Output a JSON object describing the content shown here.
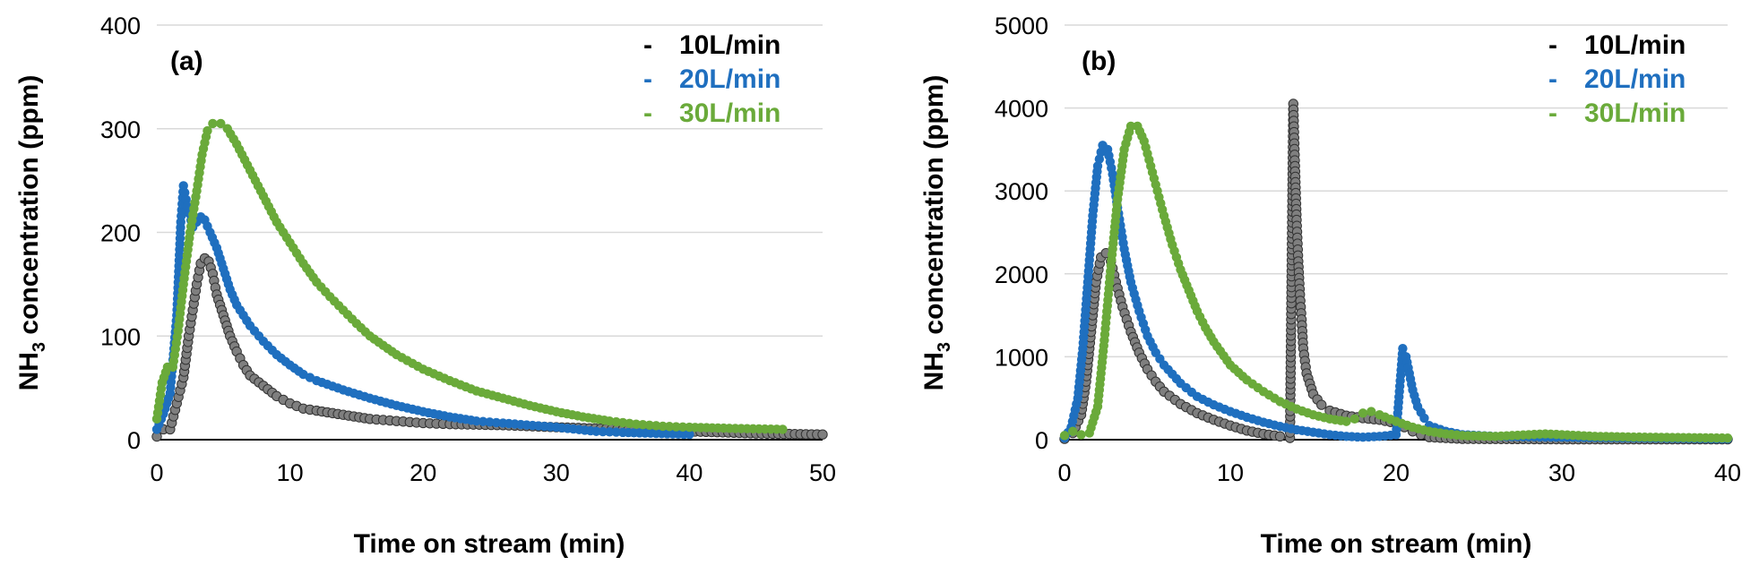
{
  "chart_data": [
    {
      "type": "scatter",
      "panel_label": "(a)",
      "xlabel": "Time on stream (min)",
      "ylabel_main": "NH",
      "ylabel_sub": "3",
      "ylabel_rest": " concentration (ppm)",
      "xlim": [
        0,
        50
      ],
      "ylim": [
        0,
        400
      ],
      "xticks": [
        "0",
        "10",
        "20",
        "30",
        "40",
        "50"
      ],
      "yticks": [
        "0",
        "100",
        "200",
        "300",
        "400"
      ],
      "grid": true,
      "legend_placement": "top-right",
      "series": [
        {
          "name": "10L/min",
          "marker": "-",
          "color": "#7f7f7f",
          "points": [
            [
              0,
              3
            ],
            [
              0.5,
              10
            ],
            [
              1,
              10
            ],
            [
              1.5,
              35
            ],
            [
              2,
              60
            ],
            [
              2.4,
              100
            ],
            [
              2.7,
              125
            ],
            [
              3,
              150
            ],
            [
              3.3,
              170
            ],
            [
              3.6,
              175
            ],
            [
              3.9,
              172
            ],
            [
              4.2,
              160
            ],
            [
              4.5,
              140
            ],
            [
              5,
              120
            ],
            [
              5.5,
              100
            ],
            [
              6,
              85
            ],
            [
              6.5,
              72
            ],
            [
              7,
              62
            ],
            [
              8,
              52
            ],
            [
              9,
              42
            ],
            [
              10,
              35
            ],
            [
              11,
              30
            ],
            [
              12,
              28
            ],
            [
              14,
              24
            ],
            [
              16,
              20
            ],
            [
              18,
              18
            ],
            [
              20,
              16
            ],
            [
              22,
              15
            ],
            [
              26,
              14
            ],
            [
              30,
              12
            ],
            [
              35,
              10
            ],
            [
              40,
              8
            ],
            [
              45,
              6
            ],
            [
              50,
              5
            ]
          ]
        },
        {
          "name": "20L/min",
          "marker": "-",
          "color": "#1f6fbf",
          "points": [
            [
              0,
              10
            ],
            [
              0.5,
              25
            ],
            [
              1,
              45
            ],
            [
              1.5,
              120
            ],
            [
              1.8,
              210
            ],
            [
              2,
              245
            ],
            [
              2.3,
              225
            ],
            [
              2.7,
              205
            ],
            [
              3,
              210
            ],
            [
              3.3,
              215
            ],
            [
              3.6,
              212
            ],
            [
              4,
              200
            ],
            [
              4.5,
              185
            ],
            [
              5,
              165
            ],
            [
              5.5,
              145
            ],
            [
              6,
              130
            ],
            [
              7,
              110
            ],
            [
              8,
              95
            ],
            [
              9,
              82
            ],
            [
              10,
              72
            ],
            [
              11,
              63
            ],
            [
              12,
              57
            ],
            [
              14,
              48
            ],
            [
              16,
              40
            ],
            [
              18,
              33
            ],
            [
              20,
              27
            ],
            [
              22,
              22
            ],
            [
              24,
              18
            ],
            [
              26,
              16
            ],
            [
              30,
              12
            ],
            [
              33,
              8
            ],
            [
              35,
              7
            ],
            [
              40,
              5
            ]
          ]
        },
        {
          "name": "30L/min",
          "marker": "-",
          "color": "#6aaa3a",
          "points": [
            [
              0,
              20
            ],
            [
              0.4,
              55
            ],
            [
              0.8,
              70
            ],
            [
              1.2,
              70
            ],
            [
              1.6,
              105
            ],
            [
              2,
              150
            ],
            [
              2.5,
              200
            ],
            [
              3,
              240
            ],
            [
              3.4,
              275
            ],
            [
              3.8,
              298
            ],
            [
              4.2,
              305
            ],
            [
              4.8,
              305
            ],
            [
              5.3,
              300
            ],
            [
              6,
              285
            ],
            [
              7,
              260
            ],
            [
              8,
              235
            ],
            [
              9,
              210
            ],
            [
              10,
              190
            ],
            [
              11,
              170
            ],
            [
              12,
              152
            ],
            [
              13,
              138
            ],
            [
              14,
              125
            ],
            [
              15,
              112
            ],
            [
              16,
              100
            ],
            [
              18,
              82
            ],
            [
              20,
              68
            ],
            [
              22,
              57
            ],
            [
              24,
              47
            ],
            [
              26,
              40
            ],
            [
              28,
              33
            ],
            [
              30,
              27
            ],
            [
              32,
              22
            ],
            [
              34,
              18
            ],
            [
              36,
              15
            ],
            [
              38,
              13
            ],
            [
              40,
              12
            ],
            [
              43,
              11
            ],
            [
              47,
              10
            ]
          ]
        }
      ]
    },
    {
      "type": "scatter",
      "panel_label": "(b)",
      "xlabel": "Time on stream (min)",
      "ylabel_main": "NH",
      "ylabel_sub": "3",
      "ylabel_rest": " concentration (ppm)",
      "xlim": [
        0,
        40
      ],
      "ylim": [
        0,
        5000
      ],
      "xticks": [
        "0",
        "10",
        "20",
        "30",
        "40"
      ],
      "yticks": [
        "0",
        "1000",
        "2000",
        "3000",
        "4000",
        "5000"
      ],
      "grid": true,
      "legend_placement": "top-right",
      "series": [
        {
          "name": "10L/min",
          "marker": "-",
          "color": "#7f7f7f",
          "points": [
            [
              0,
              10
            ],
            [
              0.5,
              80
            ],
            [
              1,
              300
            ],
            [
              1.3,
              700
            ],
            [
              1.6,
              1300
            ],
            [
              1.9,
              1900
            ],
            [
              2.2,
              2200
            ],
            [
              2.5,
              2250
            ],
            [
              2.8,
              2150
            ],
            [
              3.1,
              1900
            ],
            [
              3.5,
              1600
            ],
            [
              4,
              1300
            ],
            [
              4.5,
              1050
            ],
            [
              5,
              850
            ],
            [
              5.5,
              700
            ],
            [
              6,
              580
            ],
            [
              7,
              430
            ],
            [
              8,
              320
            ],
            [
              9,
              240
            ],
            [
              10,
              170
            ],
            [
              11,
              110
            ],
            [
              12,
              70
            ],
            [
              13,
              40
            ],
            [
              13.6,
              20
            ],
            [
              13.8,
              4050
            ],
            [
              13.9,
              3300
            ],
            [
              14,
              2650
            ],
            [
              14.1,
              2150
            ],
            [
              14.2,
              1750
            ],
            [
              14.3,
              1450
            ],
            [
              14.4,
              1100
            ],
            [
              14.6,
              800
            ],
            [
              15,
              550
            ],
            [
              15.5,
              420
            ],
            [
              16,
              350
            ],
            [
              17,
              290
            ],
            [
              18,
              260
            ],
            [
              19,
              240
            ],
            [
              20,
              200
            ],
            [
              20.5,
              150
            ],
            [
              21,
              100
            ],
            [
              21.5,
              60
            ],
            [
              22,
              30
            ],
            [
              24,
              10
            ],
            [
              30,
              5
            ],
            [
              40,
              5
            ]
          ]
        },
        {
          "name": "20L/min",
          "marker": "-",
          "color": "#1f6fbf",
          "points": [
            [
              0,
              20
            ],
            [
              0.4,
              150
            ],
            [
              0.8,
              500
            ],
            [
              1.1,
              1100
            ],
            [
              1.4,
              1900
            ],
            [
              1.7,
              2700
            ],
            [
              2,
              3300
            ],
            [
              2.3,
              3550
            ],
            [
              2.6,
              3500
            ],
            [
              2.9,
              3200
            ],
            [
              3.2,
              2800
            ],
            [
              3.6,
              2300
            ],
            [
              4,
              1900
            ],
            [
              4.5,
              1550
            ],
            [
              5,
              1250
            ],
            [
              5.5,
              1050
            ],
            [
              6,
              900
            ],
            [
              7,
              680
            ],
            [
              8,
              520
            ],
            [
              9,
              420
            ],
            [
              10,
              340
            ],
            [
              11,
              270
            ],
            [
              12,
              210
            ],
            [
              13,
              160
            ],
            [
              14,
              120
            ],
            [
              15,
              90
            ],
            [
              16,
              60
            ],
            [
              17,
              40
            ],
            [
              18,
              30
            ],
            [
              19,
              40
            ],
            [
              20,
              60
            ],
            [
              20.4,
              1100
            ],
            [
              20.6,
              1000
            ],
            [
              20.8,
              800
            ],
            [
              21,
              600
            ],
            [
              21.3,
              400
            ],
            [
              21.7,
              260
            ],
            [
              22,
              170
            ],
            [
              23,
              100
            ],
            [
              24,
              60
            ],
            [
              26,
              40
            ],
            [
              30,
              30
            ],
            [
              35,
              20
            ],
            [
              40,
              10
            ]
          ]
        },
        {
          "name": "30L/min",
          "marker": "-",
          "color": "#6aaa3a",
          "points": [
            [
              0,
              50
            ],
            [
              0.5,
              100
            ],
            [
              1,
              60
            ],
            [
              1.5,
              80
            ],
            [
              2,
              400
            ],
            [
              2.4,
              1200
            ],
            [
              2.8,
              2100
            ],
            [
              3.2,
              2900
            ],
            [
              3.6,
              3500
            ],
            [
              4,
              3780
            ],
            [
              4.4,
              3780
            ],
            [
              4.8,
              3600
            ],
            [
              5.2,
              3300
            ],
            [
              5.6,
              3000
            ],
            [
              6,
              2700
            ],
            [
              6.5,
              2350
            ],
            [
              7,
              2050
            ],
            [
              7.5,
              1800
            ],
            [
              8,
              1550
            ],
            [
              8.5,
              1350
            ],
            [
              9,
              1180
            ],
            [
              10,
              900
            ],
            [
              11,
              720
            ],
            [
              12,
              580
            ],
            [
              13,
              460
            ],
            [
              14,
              370
            ],
            [
              15,
              300
            ],
            [
              16,
              250
            ],
            [
              17,
              220
            ],
            [
              17.5,
              250
            ],
            [
              18,
              320
            ],
            [
              18.5,
              340
            ],
            [
              19,
              300
            ],
            [
              20,
              220
            ],
            [
              21,
              150
            ],
            [
              22,
              100
            ],
            [
              23,
              70
            ],
            [
              24,
              50
            ],
            [
              26,
              40
            ],
            [
              28,
              60
            ],
            [
              29,
              70
            ],
            [
              30,
              60
            ],
            [
              32,
              40
            ],
            [
              35,
              30
            ],
            [
              40,
              20
            ]
          ]
        }
      ]
    }
  ]
}
